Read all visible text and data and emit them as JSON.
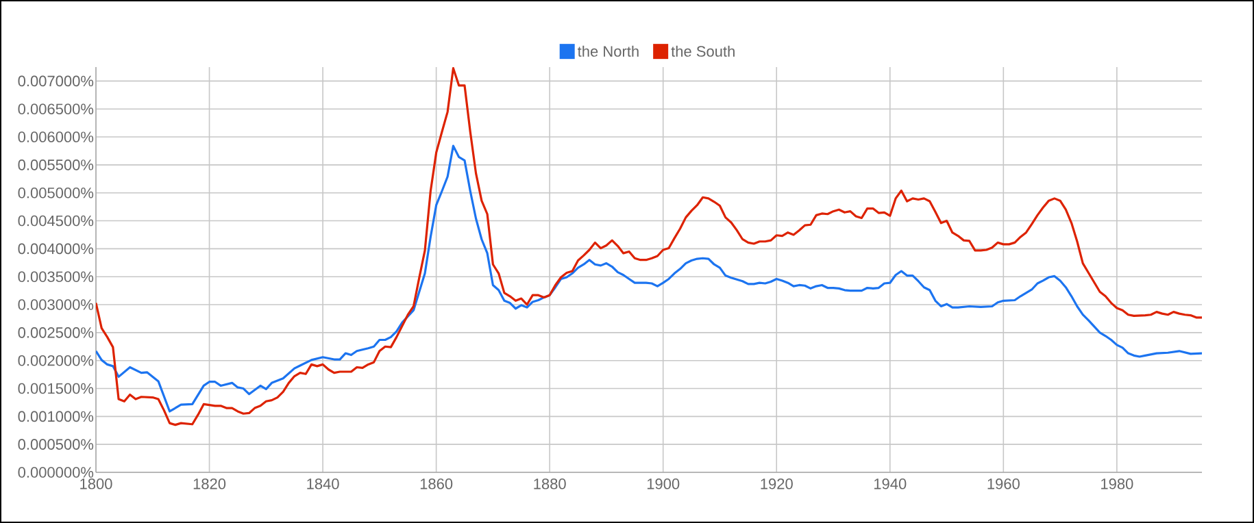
{
  "chart_data": {
    "type": "line",
    "xlim": [
      1800,
      1995
    ],
    "ylim": [
      0,
      0.00725
    ],
    "xticks": [
      1800,
      1820,
      1840,
      1860,
      1880,
      1900,
      1920,
      1940,
      1960,
      1980
    ],
    "yticks": [
      {
        "value": 0,
        "label": "0.000000%"
      },
      {
        "value": 0.0005,
        "label": "0.000500%"
      },
      {
        "value": 0.001,
        "label": "0.001000%"
      },
      {
        "value": 0.0015,
        "label": "0.001500%"
      },
      {
        "value": 0.002,
        "label": "0.002000%"
      },
      {
        "value": 0.0025,
        "label": "0.002500%"
      },
      {
        "value": 0.003,
        "label": "0.003000%"
      },
      {
        "value": 0.0035,
        "label": "0.003500%"
      },
      {
        "value": 0.004,
        "label": "0.004000%"
      },
      {
        "value": 0.0045,
        "label": "0.004500%"
      },
      {
        "value": 0.005,
        "label": "0.005000%"
      },
      {
        "value": 0.0055,
        "label": "0.005500%"
      },
      {
        "value": 0.006,
        "label": "0.006000%"
      },
      {
        "value": 0.0065,
        "label": "0.006500%"
      },
      {
        "value": 0.007,
        "label": "0.007000%"
      }
    ],
    "grid": true,
    "legend": "top",
    "marker": "none",
    "line_style": "solid",
    "series": [
      {
        "name": "the North",
        "color": "#1c74f0",
        "x": [
          1800,
          1801,
          1802,
          1803,
          1804,
          1806,
          1808,
          1809,
          1811,
          1813,
          1815,
          1817,
          1819,
          1820,
          1821,
          1822,
          1824,
          1825,
          1826,
          1827,
          1829,
          1830,
          1831,
          1833,
          1835,
          1836,
          1838,
          1840,
          1842,
          1843,
          1844,
          1845,
          1846,
          1848,
          1849,
          1850,
          1851,
          1852,
          1853,
          1854,
          1856,
          1858,
          1859,
          1860,
          1861,
          1862,
          1863,
          1864,
          1865,
          1866,
          1867,
          1868,
          1869,
          1870,
          1871,
          1872,
          1873,
          1874,
          1875,
          1876,
          1877,
          1878,
          1879,
          1880,
          1881,
          1882,
          1883,
          1884,
          1885,
          1886,
          1887,
          1888,
          1889,
          1890,
          1891,
          1892,
          1893,
          1894,
          1895,
          1896,
          1897,
          1898,
          1899,
          1900,
          1901,
          1902,
          1903,
          1904,
          1905,
          1906,
          1907,
          1908,
          1909,
          1910,
          1911,
          1912,
          1914,
          1915,
          1916,
          1917,
          1918,
          1919,
          1920,
          1921,
          1922,
          1923,
          1924,
          1925,
          1926,
          1927,
          1928,
          1929,
          1930,
          1931,
          1932,
          1933,
          1935,
          1936,
          1937,
          1938,
          1939,
          1940,
          1941,
          1942,
          1943,
          1944,
          1945,
          1946,
          1947,
          1948,
          1949,
          1950,
          1951,
          1952,
          1954,
          1956,
          1958,
          1959,
          1960,
          1962,
          1963,
          1965,
          1966,
          1967,
          1968,
          1969,
          1970,
          1971,
          1972,
          1973,
          1974,
          1975,
          1977,
          1978,
          1979,
          1980,
          1981,
          1982,
          1983,
          1984,
          1985,
          1987,
          1989,
          1991,
          1993,
          1995
        ],
        "values": [
          0.00217,
          0.00201,
          0.00193,
          0.0019,
          0.00171,
          0.00188,
          0.00178,
          0.00179,
          0.00163,
          0.00109,
          0.00121,
          0.00122,
          0.00155,
          0.00162,
          0.00162,
          0.00155,
          0.0016,
          0.00152,
          0.0015,
          0.0014,
          0.00155,
          0.00149,
          0.0016,
          0.00168,
          0.00186,
          0.00191,
          0.00201,
          0.00206,
          0.00202,
          0.00202,
          0.00213,
          0.0021,
          0.00217,
          0.00222,
          0.00225,
          0.00237,
          0.00237,
          0.00242,
          0.00252,
          0.00268,
          0.0029,
          0.00356,
          0.00421,
          0.00478,
          0.00503,
          0.00529,
          0.00584,
          0.00564,
          0.00558,
          0.00503,
          0.00454,
          0.00417,
          0.00392,
          0.00335,
          0.00326,
          0.00307,
          0.00303,
          0.00293,
          0.00299,
          0.00295,
          0.00305,
          0.00308,
          0.00313,
          0.00317,
          0.00331,
          0.00346,
          0.00349,
          0.00356,
          0.00366,
          0.00372,
          0.0038,
          0.00372,
          0.0037,
          0.00374,
          0.00368,
          0.00358,
          0.00353,
          0.00346,
          0.00339,
          0.00339,
          0.00339,
          0.00338,
          0.00333,
          0.00339,
          0.00346,
          0.00356,
          0.00364,
          0.00374,
          0.00379,
          0.00382,
          0.00383,
          0.00382,
          0.00372,
          0.00366,
          0.00352,
          0.00348,
          0.00342,
          0.00337,
          0.00337,
          0.00339,
          0.00338,
          0.00341,
          0.00346,
          0.00343,
          0.00339,
          0.00333,
          0.00335,
          0.00334,
          0.00329,
          0.00333,
          0.00335,
          0.0033,
          0.0033,
          0.00329,
          0.00326,
          0.00325,
          0.00325,
          0.0033,
          0.00329,
          0.0033,
          0.00338,
          0.00339,
          0.00353,
          0.0036,
          0.00352,
          0.00352,
          0.00342,
          0.00331,
          0.00326,
          0.00307,
          0.00297,
          0.00301,
          0.00295,
          0.00295,
          0.00297,
          0.00296,
          0.00297,
          0.00304,
          0.00307,
          0.00308,
          0.00315,
          0.00327,
          0.00338,
          0.00343,
          0.00349,
          0.00351,
          0.00343,
          0.00331,
          0.00315,
          0.00297,
          0.00282,
          0.00272,
          0.0025,
          0.00244,
          0.00237,
          0.00228,
          0.00223,
          0.00213,
          0.00209,
          0.00207,
          0.00209,
          0.00213,
          0.00214,
          0.00217,
          0.00212,
          0.00213
        ]
      },
      {
        "name": "the South",
        "color": "#dd2200",
        "x": [
          1800,
          1801,
          1802,
          1803,
          1804,
          1805,
          1806,
          1807,
          1808,
          1810,
          1811,
          1812,
          1813,
          1814,
          1815,
          1817,
          1818,
          1819,
          1821,
          1822,
          1823,
          1824,
          1825,
          1826,
          1827,
          1828,
          1829,
          1830,
          1831,
          1832,
          1833,
          1834,
          1835,
          1836,
          1837,
          1838,
          1839,
          1840,
          1841,
          1842,
          1843,
          1845,
          1846,
          1847,
          1848,
          1849,
          1850,
          1851,
          1852,
          1853,
          1854,
          1855,
          1856,
          1857,
          1858,
          1859,
          1860,
          1861,
          1862,
          1863,
          1864,
          1865,
          1866,
          1867,
          1868,
          1869,
          1870,
          1871,
          1872,
          1873,
          1874,
          1875,
          1876,
          1877,
          1878,
          1879,
          1880,
          1881,
          1882,
          1883,
          1884,
          1885,
          1886,
          1887,
          1888,
          1889,
          1890,
          1891,
          1892,
          1893,
          1894,
          1895,
          1896,
          1897,
          1898,
          1899,
          1900,
          1901,
          1902,
          1903,
          1904,
          1905,
          1906,
          1907,
          1908,
          1909,
          1910,
          1911,
          1912,
          1913,
          1914,
          1915,
          1916,
          1917,
          1918,
          1919,
          1920,
          1921,
          1922,
          1923,
          1924,
          1925,
          1926,
          1927,
          1928,
          1929,
          1930,
          1931,
          1932,
          1933,
          1934,
          1935,
          1936,
          1937,
          1938,
          1939,
          1940,
          1941,
          1942,
          1943,
          1944,
          1945,
          1946,
          1947,
          1948,
          1949,
          1950,
          1951,
          1952,
          1953,
          1954,
          1955,
          1956,
          1957,
          1958,
          1959,
          1960,
          1961,
          1962,
          1963,
          1964,
          1965,
          1966,
          1967,
          1968,
          1969,
          1970,
          1971,
          1972,
          1973,
          1974,
          1975,
          1977,
          1978,
          1979,
          1980,
          1981,
          1982,
          1983,
          1985,
          1986,
          1987,
          1988,
          1989,
          1990,
          1991,
          1992,
          1993,
          1994,
          1995
        ],
        "values": [
          0.00303,
          0.00258,
          0.00242,
          0.00224,
          0.00131,
          0.00127,
          0.00139,
          0.00131,
          0.00135,
          0.00134,
          0.00131,
          0.00111,
          0.00088,
          0.00085,
          0.00088,
          0.00086,
          0.00103,
          0.00122,
          0.00119,
          0.00119,
          0.00115,
          0.00115,
          0.00109,
          0.00105,
          0.00106,
          0.00115,
          0.00119,
          0.00127,
          0.00129,
          0.00134,
          0.00144,
          0.0016,
          0.00172,
          0.00178,
          0.00176,
          0.00193,
          0.0019,
          0.00193,
          0.00184,
          0.00178,
          0.0018,
          0.0018,
          0.00188,
          0.00187,
          0.00193,
          0.00197,
          0.00217,
          0.00225,
          0.00224,
          0.00242,
          0.00262,
          0.00282,
          0.00297,
          0.00348,
          0.00397,
          0.00503,
          0.00572,
          0.00609,
          0.00645,
          0.00723,
          0.00692,
          0.00692,
          0.00609,
          0.00535,
          0.00486,
          0.00462,
          0.00372,
          0.00356,
          0.00321,
          0.00315,
          0.00307,
          0.00311,
          0.003,
          0.00317,
          0.00317,
          0.00313,
          0.00317,
          0.00335,
          0.00349,
          0.00357,
          0.0036,
          0.00379,
          0.00388,
          0.00398,
          0.00411,
          0.00401,
          0.00406,
          0.00415,
          0.00405,
          0.00392,
          0.00395,
          0.00383,
          0.0038,
          0.0038,
          0.00383,
          0.00387,
          0.00398,
          0.00401,
          0.00419,
          0.00436,
          0.00456,
          0.00468,
          0.00478,
          0.00492,
          0.0049,
          0.00484,
          0.00477,
          0.00456,
          0.00447,
          0.00433,
          0.00417,
          0.00411,
          0.00409,
          0.00413,
          0.00413,
          0.00415,
          0.00424,
          0.00423,
          0.00429,
          0.00425,
          0.00433,
          0.00442,
          0.00443,
          0.0046,
          0.00463,
          0.00462,
          0.00467,
          0.0047,
          0.00465,
          0.00467,
          0.00458,
          0.00455,
          0.00472,
          0.00472,
          0.00464,
          0.00465,
          0.00459,
          0.0049,
          0.00504,
          0.00485,
          0.0049,
          0.00488,
          0.0049,
          0.00485,
          0.00466,
          0.00446,
          0.0045,
          0.00429,
          0.00423,
          0.00415,
          0.00414,
          0.00397,
          0.00397,
          0.00398,
          0.00402,
          0.00411,
          0.00408,
          0.00408,
          0.00411,
          0.00421,
          0.00429,
          0.00444,
          0.0046,
          0.00474,
          0.00486,
          0.0049,
          0.00486,
          0.0047,
          0.00446,
          0.00413,
          0.00374,
          0.00357,
          0.00323,
          0.00315,
          0.00303,
          0.00294,
          0.0029,
          0.00282,
          0.0028,
          0.00281,
          0.00282,
          0.00287,
          0.00284,
          0.00282,
          0.00287,
          0.00284,
          0.00282,
          0.00281,
          0.00277,
          0.00277
        ]
      }
    ]
  }
}
